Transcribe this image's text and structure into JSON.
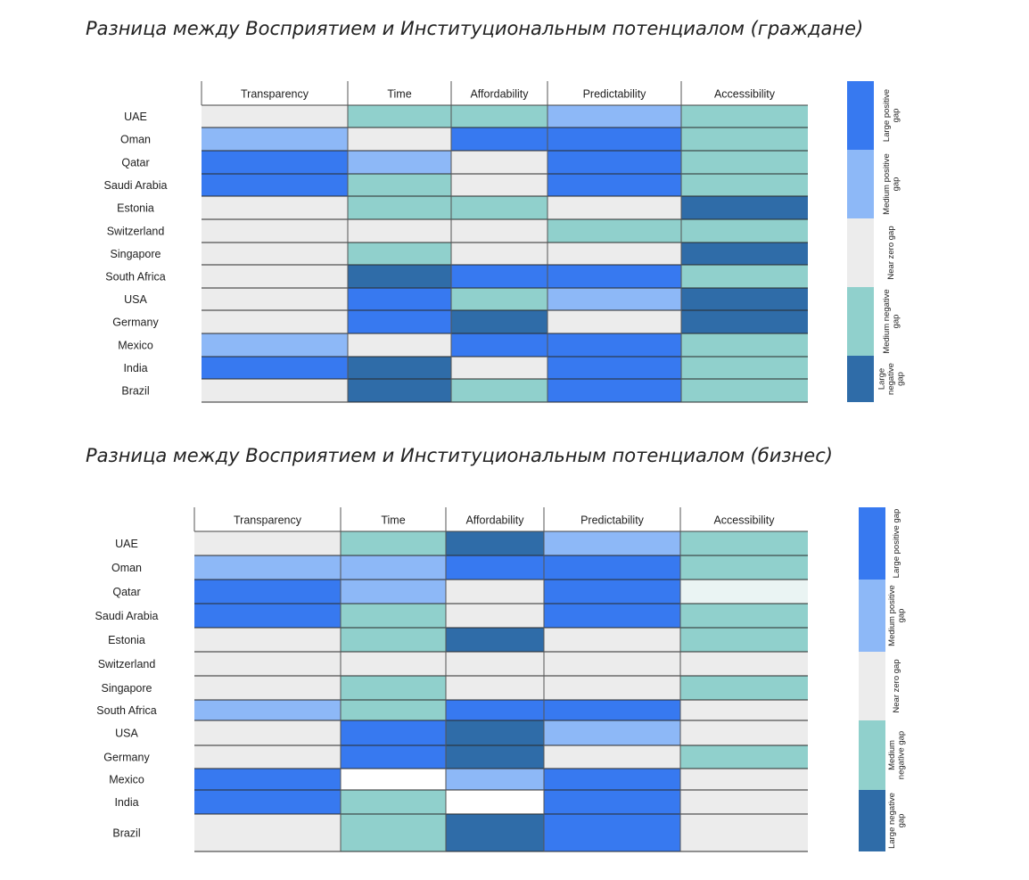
{
  "palette": {
    "large_positive": "#3779F0",
    "medium_positive": "#8DB8F7",
    "near_zero": "#ECECEC",
    "medium_negative": "#90D0CC",
    "large_negative": "#2F6CA8",
    "white": "#FFFFFF",
    "very_light": "#EAF4F3"
  },
  "chart_data": [
    {
      "type": "heatmap",
      "title": "Разница между Восприятием и Институциональным потенциалом (граждане)",
      "columns": [
        "Transparency",
        "Time",
        "Affordability",
        "Predictability",
        "Accessibility"
      ],
      "rows": [
        "UAE",
        "Oman",
        "Qatar",
        "Saudi Arabia",
        "Estonia",
        "Switzerland",
        "Singapore",
        "South Africa",
        "USA",
        "Germany",
        "Mexico",
        "India",
        "Brazil"
      ],
      "cells": [
        [
          "near_zero",
          "medium_negative",
          "medium_negative",
          "medium_positive",
          "medium_negative"
        ],
        [
          "medium_positive",
          "near_zero",
          "large_positive",
          "large_positive",
          "medium_negative"
        ],
        [
          "large_positive",
          "medium_positive",
          "near_zero",
          "large_positive",
          "medium_negative"
        ],
        [
          "large_positive",
          "medium_negative",
          "near_zero",
          "large_positive",
          "medium_negative"
        ],
        [
          "near_zero",
          "medium_negative",
          "medium_negative",
          "near_zero",
          "large_negative"
        ],
        [
          "near_zero",
          "near_zero",
          "near_zero",
          "medium_negative",
          "medium_negative"
        ],
        [
          "near_zero",
          "medium_negative",
          "near_zero",
          "near_zero",
          "large_negative"
        ],
        [
          "near_zero",
          "large_negative",
          "large_positive",
          "large_positive",
          "medium_negative"
        ],
        [
          "near_zero",
          "large_positive",
          "medium_negative",
          "medium_positive",
          "large_negative"
        ],
        [
          "near_zero",
          "large_positive",
          "large_negative",
          "near_zero",
          "large_negative"
        ],
        [
          "medium_positive",
          "near_zero",
          "large_positive",
          "large_positive",
          "medium_negative"
        ],
        [
          "large_positive",
          "large_negative",
          "near_zero",
          "large_positive",
          "medium_negative"
        ],
        [
          "near_zero",
          "large_negative",
          "medium_negative",
          "large_positive",
          "medium_negative"
        ]
      ],
      "legend": [
        {
          "key": "large_positive",
          "label": "Large positive gap",
          "lines": [
            "Large positive",
            "gap"
          ]
        },
        {
          "key": "medium_positive",
          "label": "Medium positive gap",
          "lines": [
            "Medium positive",
            "gap"
          ]
        },
        {
          "key": "near_zero",
          "label": "Near zero gap",
          "lines": [
            "Near zero gap"
          ]
        },
        {
          "key": "medium_negative",
          "label": "Medium negative gap",
          "lines": [
            "Medium negative",
            "gap"
          ]
        },
        {
          "key": "large_negative",
          "label": "Large negative gap",
          "lines": [
            "Large",
            "negative",
            "gap"
          ]
        }
      ]
    },
    {
      "type": "heatmap",
      "title": "Разница между Восприятием и Институциональным потенциалом (бизнес)",
      "columns": [
        "Transparency",
        "Time",
        "Affordability",
        "Predictability",
        "Accessibility"
      ],
      "rows": [
        "UAE",
        "Oman",
        "Qatar",
        "Saudi Arabia",
        "Estonia",
        "Switzerland",
        "Singapore",
        "South Africa",
        "USA",
        "Germany",
        "Mexico",
        "India",
        "Brazil"
      ],
      "cells": [
        [
          "near_zero",
          "medium_negative",
          "large_negative",
          "medium_positive",
          "medium_negative"
        ],
        [
          "medium_positive",
          "medium_positive",
          "large_positive",
          "large_positive",
          "medium_negative"
        ],
        [
          "large_positive",
          "medium_positive",
          "near_zero",
          "large_positive",
          "very_light"
        ],
        [
          "large_positive",
          "medium_negative",
          "near_zero",
          "large_positive",
          "medium_negative"
        ],
        [
          "near_zero",
          "medium_negative",
          "large_negative",
          "near_zero",
          "medium_negative"
        ],
        [
          "near_zero",
          "near_zero",
          "near_zero",
          "near_zero",
          "near_zero"
        ],
        [
          "near_zero",
          "medium_negative",
          "near_zero",
          "near_zero",
          "medium_negative"
        ],
        [
          "medium_positive",
          "medium_negative",
          "large_positive",
          "large_positive",
          "near_zero"
        ],
        [
          "near_zero",
          "large_positive",
          "large_negative",
          "medium_positive",
          "near_zero"
        ],
        [
          "near_zero",
          "large_positive",
          "large_negative",
          "near_zero",
          "medium_negative"
        ],
        [
          "large_positive",
          "white",
          "medium_positive",
          "large_positive",
          "near_zero"
        ],
        [
          "large_positive",
          "medium_negative",
          "white",
          "large_positive",
          "near_zero"
        ],
        [
          "near_zero",
          "medium_negative",
          "large_negative",
          "large_positive",
          "near_zero"
        ]
      ],
      "legend": [
        {
          "key": "large_positive",
          "label": "Large positive gap",
          "lines": [
            "Large positive gap"
          ]
        },
        {
          "key": "medium_positive",
          "label": "Medium positive gap",
          "lines": [
            "Medium positive",
            "gap"
          ]
        },
        {
          "key": "near_zero",
          "label": "Near zero gap",
          "lines": [
            "Near zero gap"
          ]
        },
        {
          "key": "medium_negative",
          "label": "Medium negative gap",
          "lines": [
            "Medium",
            "negative gap"
          ]
        },
        {
          "key": "large_negative",
          "label": "Large negative gap",
          "lines": [
            "Large negative",
            "gap"
          ]
        }
      ]
    }
  ]
}
